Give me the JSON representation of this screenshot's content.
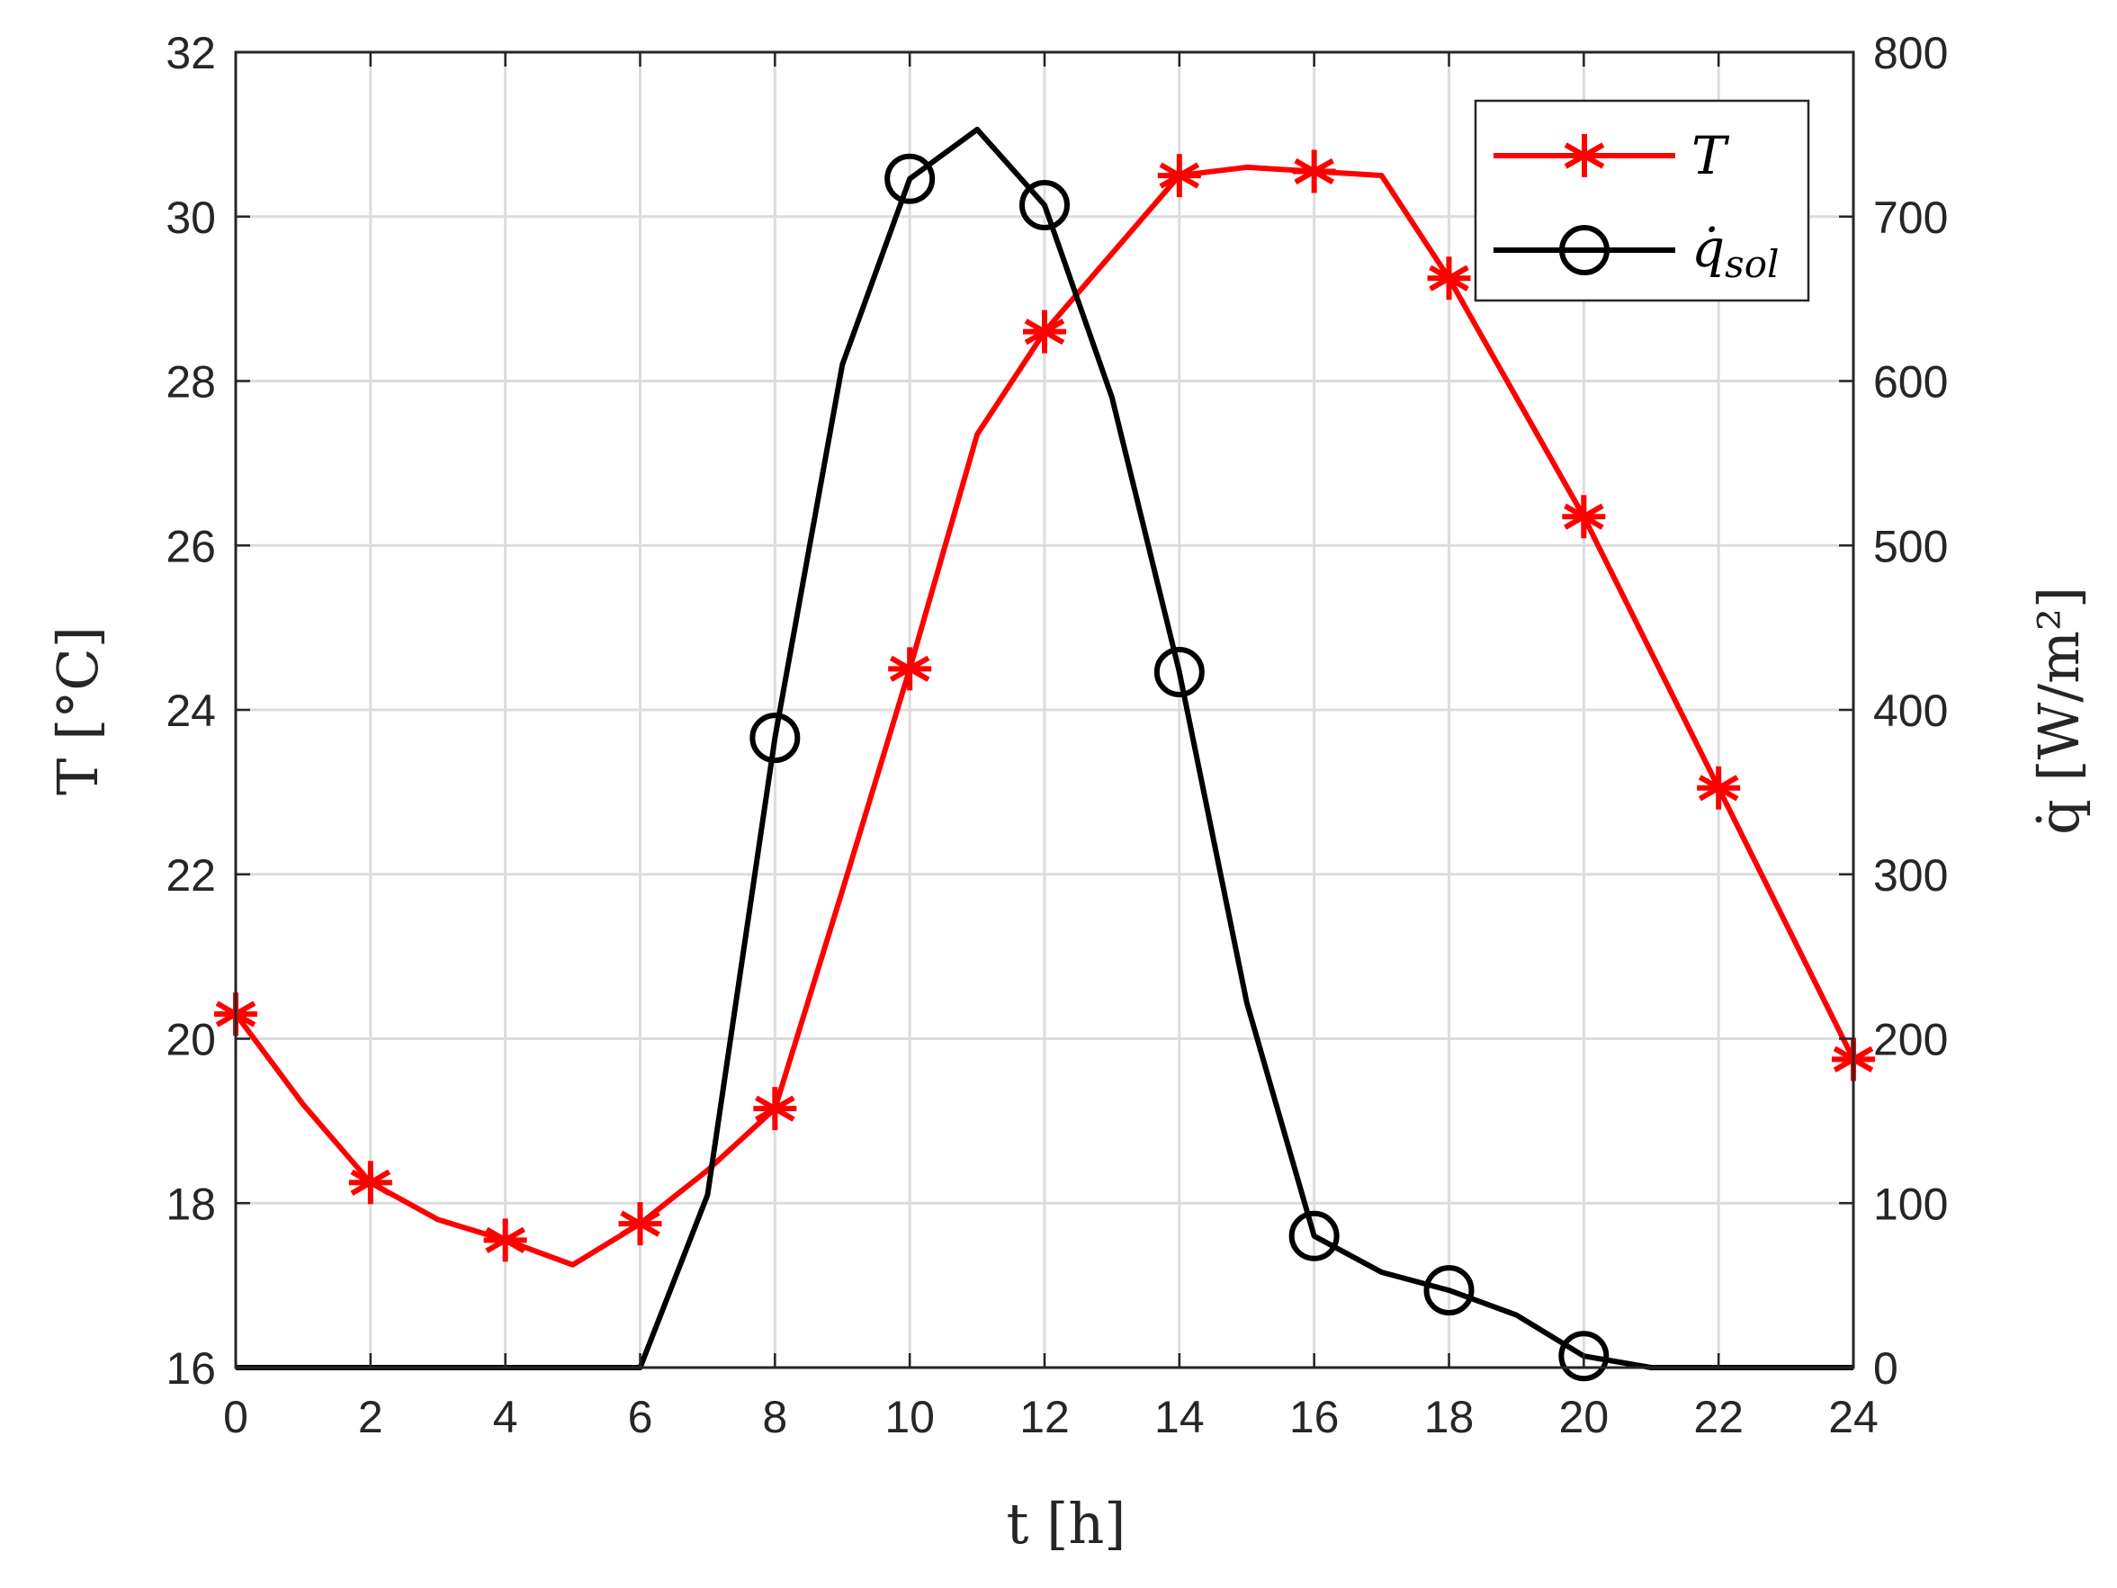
{
  "chart_data": {
    "type": "line",
    "xlabel": "t [h]",
    "ylabel_left": "T [°C]",
    "ylabel_right": "q̇ [W/m²]",
    "xlim": [
      0,
      24
    ],
    "ylim_left": [
      16,
      32
    ],
    "ylim_right": [
      0,
      800
    ],
    "xticks": [
      "0",
      "2",
      "4",
      "6",
      "8",
      "10",
      "12",
      "14",
      "16",
      "18",
      "20",
      "22",
      "24"
    ],
    "yticks_left": [
      "16",
      "18",
      "20",
      "22",
      "24",
      "26",
      "28",
      "30",
      "32"
    ],
    "yticks_right": [
      "0",
      "100",
      "200",
      "300",
      "400",
      "500",
      "600",
      "700",
      "800"
    ],
    "grid": true,
    "legend_position": "top-right",
    "series": [
      {
        "name": "T",
        "axis": "left",
        "color": "#ff0000",
        "marker": "asterisk",
        "x": [
          0,
          1,
          2,
          3,
          4,
          5,
          6,
          7,
          8,
          9,
          10,
          11,
          12,
          13,
          14,
          15,
          16,
          17,
          18,
          19,
          20,
          21,
          22,
          23,
          24
        ],
        "y": [
          20.3,
          19.2,
          18.25,
          17.8,
          17.55,
          17.25,
          17.75,
          18.4,
          19.15,
          21.8,
          24.5,
          27.35,
          28.6,
          29.55,
          30.5,
          30.6,
          30.55,
          30.5,
          29.25,
          27.8,
          26.35,
          24.7,
          23.05,
          21.4,
          19.75
        ]
      },
      {
        "name": "q̇_sol",
        "axis": "right",
        "color": "#000000",
        "marker": "circle",
        "x": [
          0,
          1,
          2,
          3,
          4,
          5,
          6,
          7,
          8,
          9,
          10,
          11,
          12,
          13,
          14,
          15,
          16,
          17,
          18,
          19,
          20,
          21,
          22,
          23,
          24
        ],
        "y": [
          0,
          0,
          0,
          0,
          0,
          0,
          0,
          105,
          383,
          610,
          723,
          753,
          707,
          590,
          423,
          222,
          80,
          58,
          47,
          32,
          7,
          0,
          0,
          0,
          0
        ]
      }
    ]
  },
  "legend": {
    "t_label": "T",
    "q_label_main": "q̇",
    "q_label_sub": "sol"
  }
}
